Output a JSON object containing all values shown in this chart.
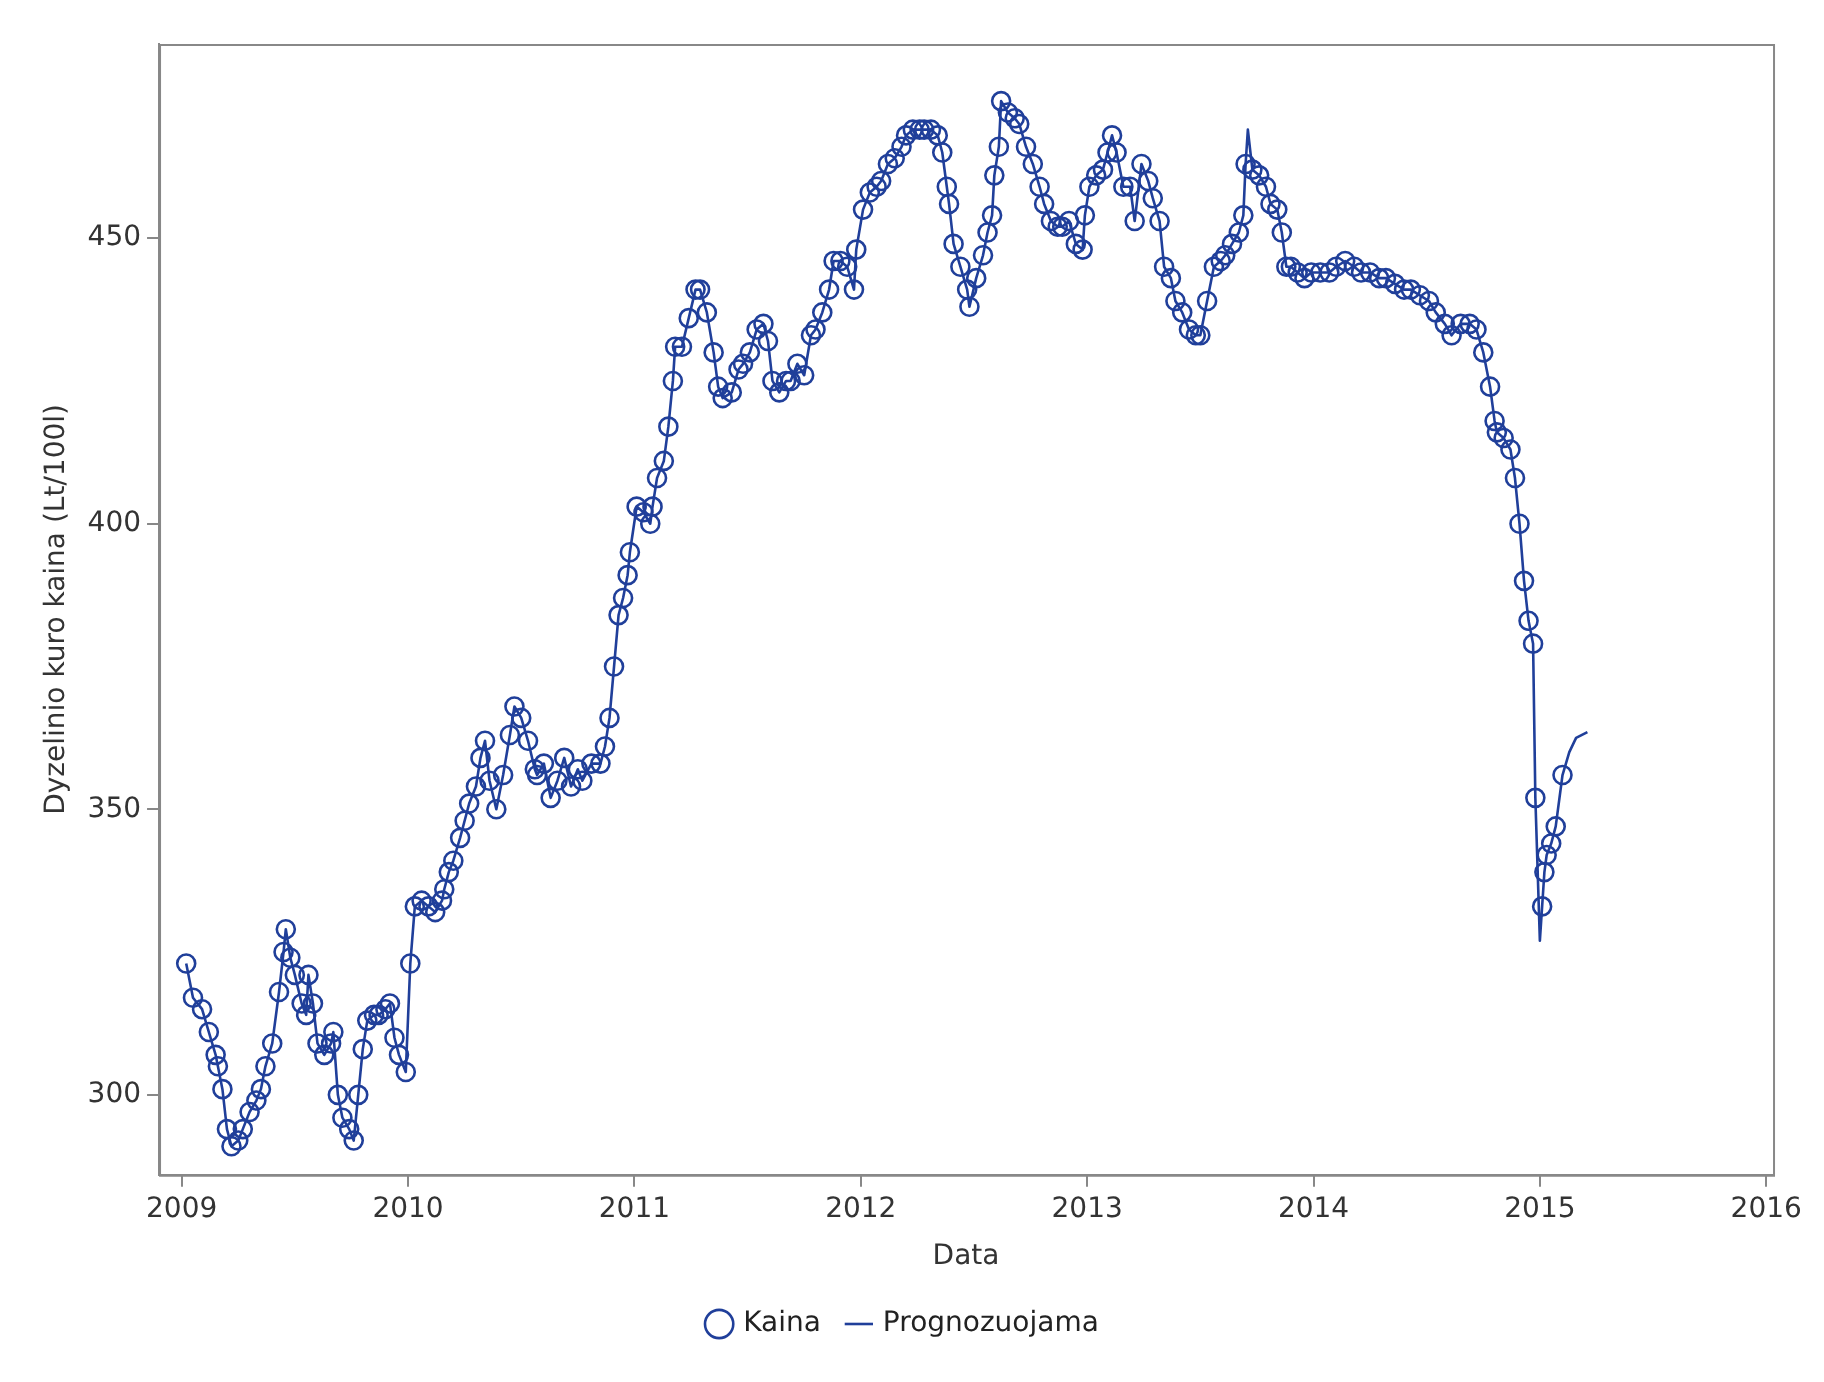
{
  "chart_data": {
    "type": "line",
    "xlabel": "Data",
    "ylabel": "Dyzelinio kuro kaina (Lt/100l)",
    "x": [
      2009.02,
      2009.05,
      2009.09,
      2009.12,
      2009.15,
      2009.16,
      2009.18,
      2009.2,
      2009.22,
      2009.25,
      2009.27,
      2009.3,
      2009.33,
      2009.35,
      2009.37,
      2009.4,
      2009.43,
      2009.45,
      2009.46,
      2009.48,
      2009.5,
      2009.53,
      2009.55,
      2009.56,
      2009.58,
      2009.6,
      2009.63,
      2009.66,
      2009.67,
      2009.69,
      2009.71,
      2009.74,
      2009.76,
      2009.78,
      2009.8,
      2009.82,
      2009.85,
      2009.87,
      2009.9,
      2009.92,
      2009.94,
      2009.96,
      2009.99,
      2010.01,
      2010.03,
      2010.06,
      2010.09,
      2010.12,
      2010.15,
      2010.16,
      2010.18,
      2010.2,
      2010.23,
      2010.25,
      2010.27,
      2010.3,
      2010.32,
      2010.34,
      2010.36,
      2010.39,
      2010.42,
      2010.45,
      2010.47,
      2010.5,
      2010.53,
      2010.56,
      2010.57,
      2010.6,
      2010.63,
      2010.66,
      2010.69,
      2010.72,
      2010.75,
      2010.77,
      2010.81,
      2010.85,
      2010.87,
      2010.89,
      2010.91,
      2010.93,
      2010.95,
      2010.97,
      2010.98,
      2011.01,
      2011.04,
      2011.07,
      2011.08,
      2011.1,
      2011.13,
      2011.15,
      2011.17,
      2011.18,
      2011.21,
      2011.24,
      2011.27,
      2011.29,
      2011.32,
      2011.35,
      2011.37,
      2011.39,
      2011.43,
      2011.46,
      2011.48,
      2011.51,
      2011.54,
      2011.57,
      2011.59,
      2011.61,
      2011.64,
      2011.67,
      2011.69,
      2011.72,
      2011.75,
      2011.78,
      2011.8,
      2011.83,
      2011.86,
      2011.88,
      2011.91,
      2011.94,
      2011.97,
      2011.98,
      2012.01,
      2012.04,
      2012.07,
      2012.09,
      2012.12,
      2012.15,
      2012.18,
      2012.2,
      2012.23,
      2012.26,
      2012.28,
      2012.31,
      2012.34,
      2012.36,
      2012.38,
      2012.39,
      2012.41,
      2012.44,
      2012.47,
      2012.48,
      2012.51,
      2012.54,
      2012.56,
      2012.58,
      2012.59,
      2012.61,
      2012.62,
      2012.65,
      2012.68,
      2012.7,
      2012.73,
      2012.76,
      2012.79,
      2012.81,
      2012.84,
      2012.87,
      2012.89,
      2012.92,
      2012.95,
      2012.98,
      2012.99,
      2013.01,
      2013.04,
      2013.07,
      2013.09,
      2013.11,
      2013.13,
      2013.16,
      2013.19,
      2013.21,
      2013.24,
      2013.27,
      2013.29,
      2013.32,
      2013.34,
      2013.37,
      2013.39,
      2013.42,
      2013.45,
      2013.48,
      2013.5,
      2013.53,
      2013.56,
      2013.59,
      2013.61,
      2013.64,
      2013.67,
      2013.69,
      2013.7,
      2013.71,
      2013.73,
      2013.76,
      2013.79,
      2013.81,
      2013.84,
      2013.86,
      2013.88,
      2013.9,
      2013.93,
      2013.96,
      2013.99,
      2014.03,
      2014.07,
      2014.1,
      2014.14,
      2014.18,
      2014.21,
      2014.25,
      2014.29,
      2014.32,
      2014.36,
      2014.4,
      2014.43,
      2014.47,
      2014.51,
      2014.54,
      2014.58,
      2014.61,
      2014.65,
      2014.69,
      2014.72,
      2014.75,
      2014.78,
      2014.8,
      2014.81,
      2014.84,
      2014.87,
      2014.89,
      2014.91,
      2014.93,
      2014.95,
      2014.97,
      2014.98,
      2015.0,
      2015.01,
      2015.02,
      2015.03,
      2015.05,
      2015.07,
      2015.1,
      2015.13,
      2015.16,
      2015.21
    ],
    "series": [
      {
        "name": "Kaina",
        "type": "scatter",
        "marker": "circle",
        "color": "#203f9a",
        "values": [
          323,
          317,
          315,
          311,
          307,
          305,
          301,
          294,
          291,
          292,
          294,
          297,
          299,
          301,
          305,
          309,
          318,
          325,
          329,
          324,
          321,
          316,
          314,
          321,
          316,
          309,
          307,
          309,
          311,
          300,
          296,
          294,
          292,
          300,
          308,
          313,
          314,
          314,
          315,
          316,
          310,
          307,
          304,
          323,
          333,
          334,
          333,
          332,
          334,
          336,
          339,
          341,
          345,
          348,
          351,
          354,
          359,
          362,
          355,
          350,
          356,
          363,
          368,
          366,
          362,
          357,
          356,
          358,
          352,
          355,
          359,
          354,
          357,
          355,
          358,
          358,
          361,
          366,
          375,
          384,
          387,
          391,
          395,
          403,
          402,
          400,
          403,
          408,
          411,
          417,
          425,
          431,
          431,
          436,
          441,
          441,
          437,
          430,
          424,
          422,
          423,
          427,
          428,
          430,
          434,
          435,
          432,
          425,
          423,
          425,
          425,
          428,
          426,
          433,
          434,
          437,
          441,
          446,
          446,
          445,
          441,
          448,
          455,
          458,
          459,
          460,
          463,
          464,
          466,
          468,
          469,
          469,
          469,
          469,
          468,
          465,
          459,
          456,
          449,
          445,
          441,
          438,
          443,
          447,
          451,
          454,
          461,
          466,
          474,
          472,
          471,
          470,
          466,
          463,
          459,
          456,
          453,
          452,
          452,
          453,
          449,
          448,
          454,
          459,
          461,
          462,
          465,
          468,
          465,
          459,
          459,
          453,
          463,
          460,
          457,
          453,
          445,
          443,
          439,
          437,
          434,
          433,
          433,
          439,
          445,
          446,
          447,
          449,
          451,
          454,
          463,
          null,
          462,
          461,
          459,
          456,
          455,
          451,
          445,
          445,
          444,
          443,
          444,
          444,
          444,
          445,
          446,
          445,
          444,
          444,
          443,
          443,
          442,
          441,
          441,
          440,
          439,
          437,
          435,
          433,
          435,
          435,
          434,
          430,
          424,
          418,
          416,
          415,
          413,
          408,
          400,
          390,
          383,
          379,
          352,
          null,
          333,
          339,
          342,
          344,
          347,
          356,
          null,
          null,
          null
        ]
      },
      {
        "name": "Prognozuojama",
        "marker": "none",
        "line_style": "solid",
        "color": "#203f9a",
        "values": [
          323,
          317,
          315,
          311,
          307,
          305,
          301,
          294,
          291,
          292,
          294,
          297,
          299,
          301,
          305,
          309,
          318,
          325,
          329,
          324,
          321,
          316,
          314,
          321,
          316,
          309,
          307,
          309,
          311,
          300,
          296,
          294,
          292,
          300,
          308,
          313,
          314,
          314,
          315,
          316,
          310,
          307,
          304,
          323,
          333,
          334,
          333,
          332,
          334,
          336,
          339,
          341,
          345,
          348,
          351,
          354,
          359,
          362,
          355,
          350,
          356,
          363,
          368,
          366,
          362,
          357,
          356,
          358,
          352,
          355,
          359,
          354,
          357,
          355,
          358,
          358,
          361,
          366,
          375,
          384,
          387,
          391,
          395,
          403,
          402,
          400,
          403,
          408,
          411,
          417,
          425,
          431,
          431,
          436,
          441,
          441,
          437,
          430,
          424,
          422,
          423,
          427,
          428,
          430,
          434,
          435,
          432,
          425,
          423,
          425,
          425,
          428,
          426,
          433,
          434,
          437,
          441,
          446,
          446,
          445,
          441,
          448,
          455,
          458,
          459,
          460,
          463,
          464,
          466,
          468,
          469,
          469,
          469,
          469,
          468,
          465,
          459,
          456,
          449,
          445,
          441,
          438,
          443,
          447,
          451,
          454,
          461,
          466,
          474,
          472,
          471,
          470,
          466,
          463,
          459,
          456,
          453,
          452,
          452,
          453,
          449,
          448,
          454,
          459,
          461,
          462,
          465,
          468,
          465,
          459,
          459,
          453,
          463,
          460,
          457,
          453,
          445,
          443,
          439,
          437,
          434,
          433,
          433,
          439,
          445,
          446,
          447,
          449,
          451,
          454,
          463,
          469,
          462,
          461,
          459,
          456,
          455,
          451,
          445,
          445,
          444,
          443,
          444,
          444,
          444,
          445,
          446,
          445,
          444,
          444,
          443,
          443,
          442,
          441,
          441,
          440,
          439,
          437,
          435,
          433,
          435,
          435,
          434,
          430,
          424,
          418,
          416,
          415,
          413,
          408,
          400,
          390,
          383,
          379,
          352,
          327,
          333,
          339,
          342,
          344,
          347,
          356,
          360,
          362.5,
          363.5
        ]
      }
    ],
    "xlim": [
      2008.9,
      2016.03
    ],
    "xticks": [
      2009,
      2010,
      2011,
      2012,
      2013,
      2014,
      2015,
      2016
    ],
    "ylim": [
      286,
      484
    ],
    "yticks": [
      300,
      350,
      400,
      450
    ],
    "grid": false,
    "legend": "bottom"
  }
}
